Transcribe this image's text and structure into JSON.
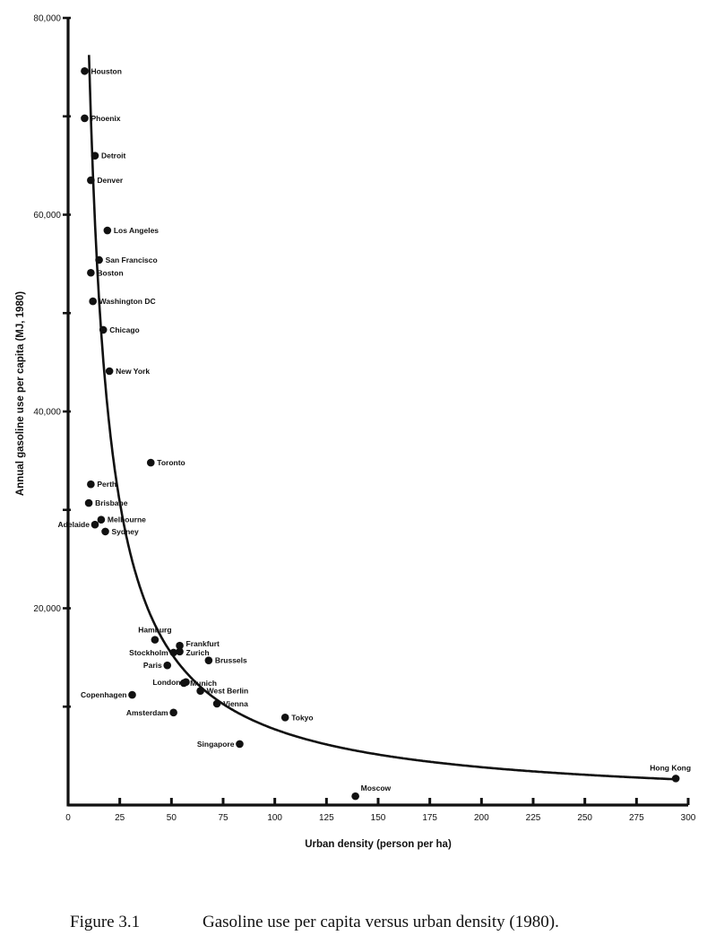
{
  "caption": {
    "label": "Figure 3.1",
    "text": "Gasoline use per capita versus urban density (1980)."
  },
  "chart_data": {
    "type": "scatter",
    "title": "",
    "xlabel": "Urban density (person per ha)",
    "ylabel": "Annual gasoline use per capita (MJ, 1980)",
    "xlim": [
      0,
      300
    ],
    "ylim": [
      0,
      80000
    ],
    "x_ticks": [
      0,
      25,
      50,
      75,
      100,
      125,
      150,
      175,
      200,
      225,
      250,
      275,
      300
    ],
    "y_ticks": [
      10000,
      20000,
      30000,
      40000,
      50000,
      60000,
      70000,
      80000
    ],
    "y_tick_labels": [
      "",
      "20,000",
      "",
      "40,000",
      "",
      "60,000",
      "",
      "80,000"
    ],
    "grid": false,
    "trend_curve": "fitted curve of form y ≈ 7.7e5 / x",
    "points": [
      {
        "city": "Houston",
        "x": 8,
        "y": 74600
      },
      {
        "city": "Phoenix",
        "x": 8,
        "y": 69800
      },
      {
        "city": "Detroit",
        "x": 13,
        "y": 66000
      },
      {
        "city": "Denver",
        "x": 11,
        "y": 63500
      },
      {
        "city": "Los Angeles",
        "x": 19,
        "y": 58400
      },
      {
        "city": "San Francisco",
        "x": 15,
        "y": 55400
      },
      {
        "city": "Boston",
        "x": 11,
        "y": 54100
      },
      {
        "city": "Washington DC",
        "x": 12,
        "y": 51200
      },
      {
        "city": "Chicago",
        "x": 17,
        "y": 48300
      },
      {
        "city": "New York",
        "x": 20,
        "y": 44100
      },
      {
        "city": "Toronto",
        "x": 40,
        "y": 34800
      },
      {
        "city": "Perth",
        "x": 11,
        "y": 32600
      },
      {
        "city": "Brisbane",
        "x": 10,
        "y": 30700
      },
      {
        "city": "Melbourne",
        "x": 16,
        "y": 29000
      },
      {
        "city": "Adelaide",
        "x": 13,
        "y": 28500
      },
      {
        "city": "Sydney",
        "x": 18,
        "y": 27800
      },
      {
        "city": "Hamburg",
        "x": 42,
        "y": 16800
      },
      {
        "city": "Frankfurt",
        "x": 54,
        "y": 16200
      },
      {
        "city": "Stockholm",
        "x": 51,
        "y": 15500
      },
      {
        "city": "Zurich",
        "x": 54,
        "y": 15600
      },
      {
        "city": "Paris",
        "x": 48,
        "y": 14200
      },
      {
        "city": "Brussels",
        "x": 68,
        "y": 14700
      },
      {
        "city": "London",
        "x": 57,
        "y": 12500
      },
      {
        "city": "Munich",
        "x": 56,
        "y": 12400
      },
      {
        "city": "West Berlin",
        "x": 64,
        "y": 11600
      },
      {
        "city": "Copenhagen",
        "x": 31,
        "y": 11200
      },
      {
        "city": "Vienna",
        "x": 72,
        "y": 10300
      },
      {
        "city": "Amsterdam",
        "x": 51,
        "y": 9400
      },
      {
        "city": "Tokyo",
        "x": 105,
        "y": 8900
      },
      {
        "city": "Singapore",
        "x": 83,
        "y": 6200
      },
      {
        "city": "Hong Kong",
        "x": 294,
        "y": 2700
      },
      {
        "city": "Moscow",
        "x": 139,
        "y": 900
      }
    ]
  }
}
